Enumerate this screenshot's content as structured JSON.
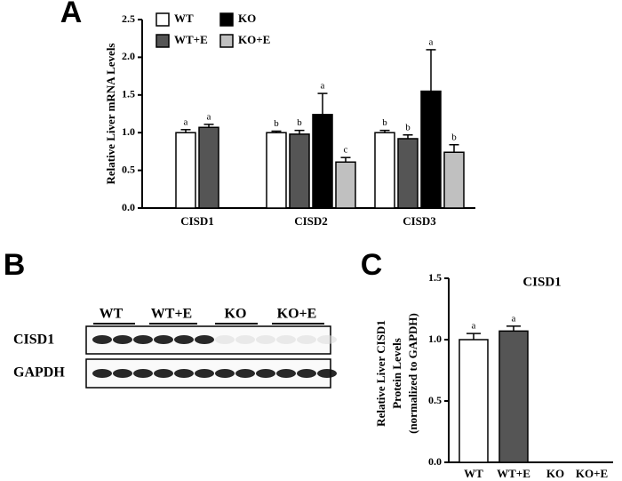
{
  "chart_data": [
    {
      "type": "grouped_bar",
      "panel": "A",
      "ylabel": "Relative Liver mRNA Levels",
      "categories": [
        "CISD1",
        "CISD2",
        "CISD3"
      ],
      "series": [
        {
          "name": "WT",
          "color": "#ffffff",
          "values": [
            1.0,
            1.0,
            1.0
          ],
          "errors": [
            0.04,
            0.02,
            0.03
          ],
          "letters": [
            "a",
            "b",
            "b"
          ]
        },
        {
          "name": "WT+E",
          "color": "#555555",
          "values": [
            1.07,
            0.98,
            0.92
          ],
          "errors": [
            0.04,
            0.05,
            0.05
          ],
          "letters": [
            "a",
            "b",
            "b"
          ]
        },
        {
          "name": "KO",
          "color": "#000000",
          "values": [
            null,
            1.24,
            1.55
          ],
          "errors": [
            null,
            0.28,
            0.55
          ],
          "letters": [
            null,
            "a",
            "a"
          ]
        },
        {
          "name": "KO+E",
          "color": "#c0c0c0",
          "values": [
            null,
            0.61,
            0.74
          ],
          "errors": [
            null,
            0.06,
            0.1
          ],
          "letters": [
            null,
            "c",
            "b"
          ]
        }
      ],
      "ylim": [
        0,
        2.5
      ],
      "yticks": [
        {
          "value": 0,
          "label": "0.0"
        },
        0.5,
        {
          "value": 1,
          "label": "1.0"
        },
        1.5,
        {
          "value": 2,
          "label": "2.0"
        },
        2.5
      ]
    },
    {
      "type": "bar",
      "panel": "C",
      "title": "CISD1",
      "ylabel": [
        "Relative Liver CISD1",
        "Protein Levels",
        "(normalized to GAPDH)"
      ],
      "categories": [
        "WT",
        "WT+E",
        "KO",
        "KO+E"
      ],
      "values": [
        1.0,
        1.07,
        null,
        null
      ],
      "errors": [
        0.05,
        0.04,
        null,
        null
      ],
      "letters": [
        "a",
        "a",
        null,
        null
      ],
      "colors": [
        "#ffffff",
        "#555555",
        "#000000",
        "#c0c0c0"
      ],
      "ylim": [
        0,
        1.5
      ],
      "yticks": [
        {
          "value": 0,
          "label": "0.0"
        },
        0.5,
        {
          "value": 1,
          "label": "1.0"
        },
        1.5
      ]
    }
  ],
  "blot": {
    "panel": "B",
    "groups": [
      "WT",
      "WT+E",
      "KO",
      "KO+E"
    ],
    "rows": [
      "CISD1",
      "GAPDH"
    ]
  }
}
